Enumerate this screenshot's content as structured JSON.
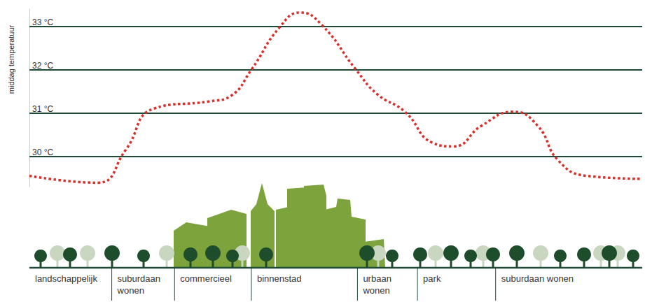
{
  "chart_data": {
    "type": "line",
    "y_label": "middag temperatuur",
    "x": [
      0,
      98,
      138,
      178,
      258,
      288,
      318,
      358,
      388,
      418,
      468,
      498,
      538,
      578,
      608,
      648,
      693,
      728,
      758,
      798,
      878
    ],
    "values": [
      29.55,
      29.39,
      30.15,
      31.1,
      31.27,
      31.39,
      32.0,
      32.97,
      33.32,
      33.05,
      32.0,
      31.44,
      31.03,
      30.31,
      30.23,
      30.71,
      31.03,
      30.71,
      29.9,
      29.55,
      29.48
    ],
    "color": "#d9302c",
    "line_style": "dotted",
    "xlim": [
      0,
      878
    ],
    "ylim": [
      29.3,
      33.4
    ],
    "yticks": [
      {
        "value": 30,
        "label": "30 °C"
      },
      {
        "value": 31,
        "label": "31 °C"
      },
      {
        "value": 32,
        "label": "32 °C"
      },
      {
        "value": 33,
        "label": "33 °C"
      }
    ],
    "grid": true,
    "tick_labels": "y",
    "zones": [
      {
        "label": "landschappelijk",
        "start": 0,
        "end": 118
      },
      {
        "label": "suburdaan wonen",
        "start": 118,
        "end": 208
      },
      {
        "label": "commercieel",
        "start": 208,
        "end": 318
      },
      {
        "label": "binnenstad",
        "start": 318,
        "end": 470
      },
      {
        "label": "urbaan wonen",
        "start": 470,
        "end": 556
      },
      {
        "label": "park",
        "start": 556,
        "end": 668
      },
      {
        "label": "suburdaan wonen",
        "start": 668,
        "end": 878
      }
    ]
  }
}
